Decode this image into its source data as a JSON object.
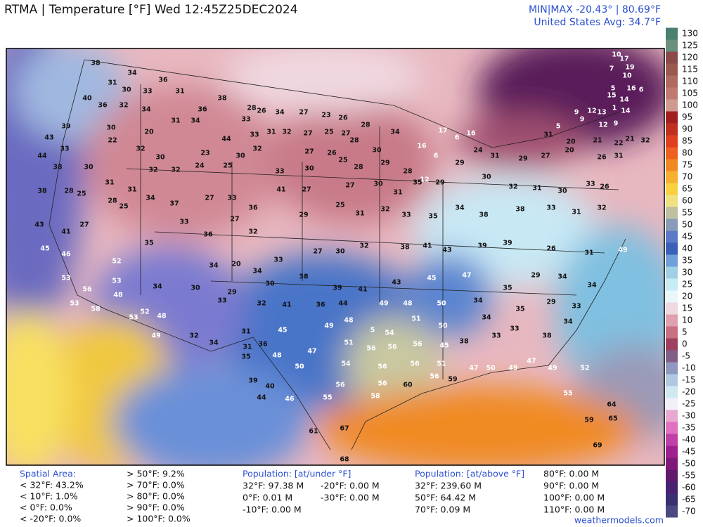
{
  "header": {
    "title": "RTMA | Temperature [°F]  Wed 12:45Z25DEC2024",
    "minmax": "MIN|MAX -20.43° | 80.69°F",
    "avg": "United States Avg: 34.7°F"
  },
  "colorbar": {
    "ticks": [
      130,
      125,
      120,
      115,
      110,
      105,
      100,
      95,
      90,
      85,
      80,
      75,
      70,
      65,
      60,
      55,
      50,
      45,
      40,
      35,
      30,
      25,
      20,
      15,
      10,
      5,
      0,
      -5,
      -10,
      -15,
      -20,
      -25,
      -30,
      -35,
      -40,
      -45,
      -50,
      -55,
      -60,
      -65,
      -70
    ],
    "colors": [
      "#4a8070",
      "#6a9080",
      "#8a4a4a",
      "#9a5a50",
      "#b06a60",
      "#c07a70",
      "#d09a90",
      "#a02020",
      "#c03020",
      "#e04020",
      "#f06020",
      "#f08a20",
      "#f8b030",
      "#f8d040",
      "#f0e080",
      "#c0c0a0",
      "#8a9ab8",
      "#5a7ac8",
      "#3a60b8",
      "#70a0d8",
      "#a0d0e8",
      "#c8ecf4",
      "#e8f8fa",
      "#f0d8e0",
      "#e0a0b0",
      "#c87080",
      "#a04060",
      "#806088",
      "#9098c0",
      "#b0c8e0",
      "#d0e8f0",
      "#f0f0f8",
      "#e8a8d0",
      "#e070c0",
      "#c040a8",
      "#a02090",
      "#801a78",
      "#601a6a",
      "#4a2070",
      "#3a3070",
      "#4a4a80"
    ]
  },
  "stations": [
    "38",
    "34",
    "31",
    "30",
    "33",
    "36",
    "31",
    "40",
    "36",
    "32",
    "34",
    "36",
    "38",
    "28",
    "26",
    "34",
    "27",
    "23",
    "26",
    "28",
    "39",
    "30",
    "20",
    "31",
    "34",
    "44",
    "33",
    "33",
    "31",
    "32",
    "27",
    "25",
    "27",
    "43",
    "33",
    "22",
    "32",
    "30",
    "23",
    "30",
    "32",
    "27",
    "26",
    "28",
    "30",
    "34",
    "16",
    "6",
    "12",
    "44",
    "38",
    "30",
    "31",
    "31",
    "32",
    "32",
    "24",
    "25",
    "33",
    "30",
    "25",
    "28",
    "29",
    "28",
    "29",
    "24",
    "31",
    "29",
    "27",
    "20",
    "26",
    "22",
    "31",
    "38",
    "28",
    "25",
    "28",
    "25",
    "34",
    "37",
    "27",
    "33",
    "36",
    "41",
    "27",
    "27",
    "30",
    "31",
    "35",
    "29",
    "30",
    "32",
    "31",
    "30",
    "33",
    "26",
    "43",
    "41",
    "27",
    "35",
    "33",
    "36",
    "27",
    "32",
    "29",
    "25",
    "31",
    "32",
    "33",
    "35",
    "34",
    "38",
    "38",
    "33",
    "31",
    "32",
    "45",
    "46",
    "52",
    "34",
    "20",
    "34",
    "33",
    "27",
    "30",
    "32",
    "38",
    "41",
    "43",
    "39",
    "39",
    "26",
    "31",
    "49",
    "53",
    "53",
    "34",
    "30",
    "29",
    "30",
    "38",
    "39",
    "41",
    "43",
    "45",
    "47",
    "35",
    "29",
    "34",
    "34",
    "56",
    "53",
    "48",
    "52",
    "48",
    "33",
    "32",
    "41",
    "36",
    "44",
    "49",
    "48",
    "50",
    "34",
    "35",
    "29",
    "33",
    "58",
    "53",
    "49",
    "32",
    "31",
    "45",
    "49",
    "48",
    "5",
    "54",
    "51",
    "50",
    "34",
    "33",
    "34",
    "34",
    "31",
    "36",
    "47",
    "51",
    "56",
    "56",
    "56",
    "45",
    "38",
    "33",
    "38",
    "35",
    "48",
    "50",
    "54",
    "56",
    "56",
    "51",
    "47",
    "50",
    "49",
    "47",
    "49",
    "52",
    "39",
    "40",
    "56",
    "56",
    "60",
    "56",
    "59",
    "46",
    "55",
    "58",
    "55",
    "64",
    "44",
    "59",
    "67",
    "61",
    "68",
    "69",
    "65",
    "10",
    "17",
    "19",
    "7",
    "10",
    "5",
    "16",
    "6",
    "14",
    "1",
    "15",
    "14",
    "9",
    "12",
    "13",
    "12",
    "9",
    "9",
    "5",
    "31",
    "20",
    "21",
    "21",
    "32",
    "17",
    "6",
    "16"
  ],
  "footer": {
    "spatial_title": "Spatial Area:",
    "spatial_below": [
      "< 32°F: 43.2%",
      "< 10°F: 1.0%",
      "< 0°F: 0.0%",
      "< -20°F: 0.0%"
    ],
    "spatial_above": [
      "> 50°F: 9.2%",
      "> 70°F: 0.0%",
      "> 80°F: 0.0%",
      "> 90°F: 0.0%",
      "> 100°F: 0.0%"
    ],
    "pop_under_title": "Population: [at/under °F]",
    "pop_under": [
      "32°F: 97.38 M",
      "0°F: 0.01 M",
      "-10°F: 0.00 M",
      "-20°F: 0.00 M",
      "-30°F: 0.00 M"
    ],
    "pop_above_title": "Population: [at/above °F]",
    "pop_above": [
      "32°F: 239.60 M",
      "50°F: 64.42 M",
      "70°F: 0.09 M",
      "80°F: 0.00 M",
      "90°F: 0.00 M",
      "100°F: 0.00 M",
      "110°F: 0.00 M"
    ],
    "site": "weathermodels.com"
  }
}
